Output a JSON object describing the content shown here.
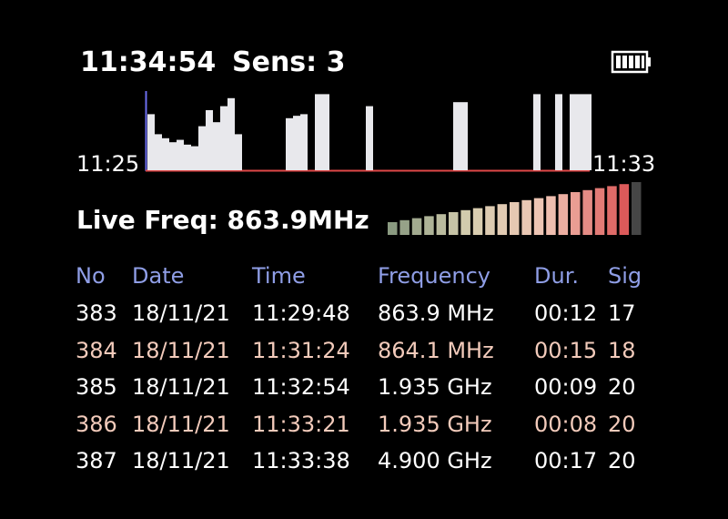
{
  "header": {
    "clock": "11:34:54",
    "sensitivity": "Sens: 3"
  },
  "activity": {
    "start_label": "11:25",
    "end_label": "11:33",
    "levels": [
      70,
      45,
      40,
      35,
      38,
      32,
      30,
      55,
      75,
      60,
      80,
      90,
      45,
      0,
      0,
      0,
      0,
      0,
      0,
      65,
      68,
      70,
      0,
      95,
      95,
      0,
      0,
      0,
      0,
      0,
      80,
      0,
      0,
      0,
      0,
      0,
      0,
      0,
      0,
      0,
      0,
      0,
      85,
      85,
      0,
      0,
      0,
      0,
      0,
      0,
      0,
      0,
      0,
      95,
      0,
      0,
      95,
      0,
      95,
      95,
      95
    ]
  },
  "live_frequency": "Live Freq: 863.9MHz",
  "table": {
    "headers": [
      "No",
      "Date",
      "Time",
      "Frequency",
      "Dur.",
      "Sig"
    ],
    "rows": [
      [
        "383",
        "18/11/21",
        "11:29:48",
        "863.9 MHz",
        "00:12",
        "17"
      ],
      [
        "384",
        "18/11/21",
        "11:31:24",
        "864.1 MHz",
        "00:15",
        "18"
      ],
      [
        "385",
        "18/11/21",
        "11:32:54",
        "1.935 GHz",
        "00:09",
        "20"
      ],
      [
        "386",
        "18/11/21",
        "11:33:21",
        "1.935 GHz",
        "00:08",
        "20"
      ],
      [
        "387",
        "18/11/21",
        "11:33:38",
        "4.900 GHz",
        "00:17",
        "20"
      ]
    ]
  }
}
